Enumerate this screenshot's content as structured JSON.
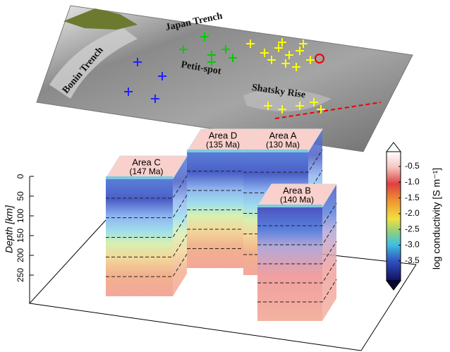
{
  "map": {
    "labels": [
      "Japan Trench",
      "Bonin Trench",
      "Petit-spot",
      "Shatsky Rise"
    ]
  },
  "columns": [
    {
      "name": "Area D",
      "age": "(135 Ma)"
    },
    {
      "name": "Area A",
      "age": "(130 Ma)"
    },
    {
      "name": "Area C",
      "age": "(147 Ma)"
    },
    {
      "name": "Area B",
      "age": "(140 Ma)"
    }
  ],
  "depth_axis": {
    "label": "Depth [km]",
    "ticks": [
      "0",
      "50",
      "100",
      "150",
      "200",
      "250"
    ]
  },
  "colorbar": {
    "label": "log conductivity [S m⁻¹]",
    "ticks": [
      "-0.5",
      "-1.0",
      "-1.5",
      "-2.0",
      "-2.5",
      "-3.0",
      "-3.5"
    ]
  }
}
